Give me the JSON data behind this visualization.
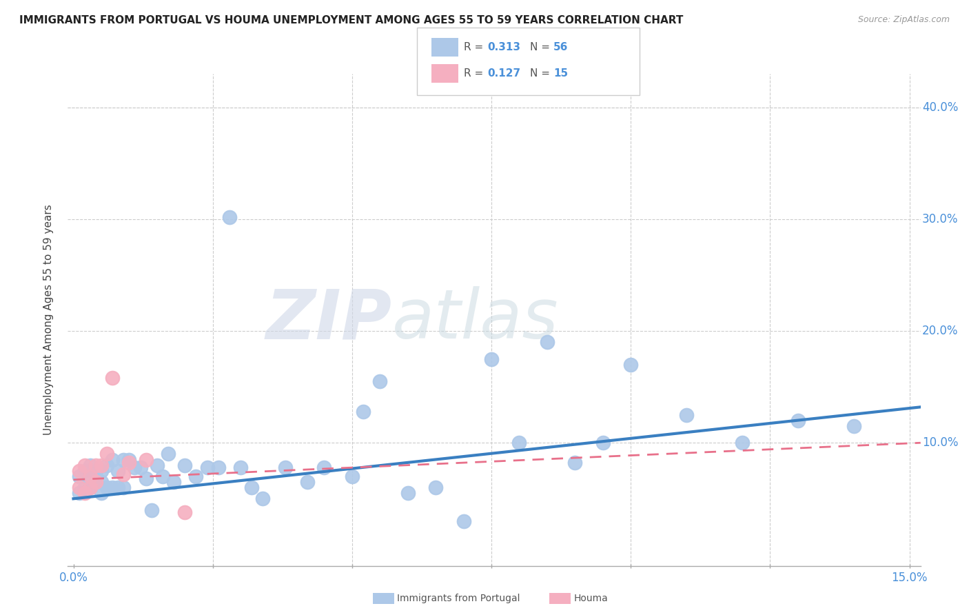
{
  "title": "IMMIGRANTS FROM PORTUGAL VS HOUMA UNEMPLOYMENT AMONG AGES 55 TO 59 YEARS CORRELATION CHART",
  "source": "Source: ZipAtlas.com",
  "ylabel": "Unemployment Among Ages 55 to 59 years",
  "xlim": [
    -0.001,
    0.152
  ],
  "ylim": [
    -0.01,
    0.43
  ],
  "yticks": [
    0.0,
    0.1,
    0.2,
    0.3,
    0.4
  ],
  "xticks": [
    0.0,
    0.025,
    0.05,
    0.075,
    0.1,
    0.125,
    0.15
  ],
  "blue_R": "0.313",
  "blue_N": "56",
  "pink_R": "0.127",
  "pink_N": "15",
  "blue_scatter_color": "#adc8e8",
  "pink_scatter_color": "#f5afc0",
  "blue_line_color": "#3a7fc1",
  "pink_line_color": "#e8708a",
  "watermark_zip": "ZIP",
  "watermark_atlas": "atlas",
  "blue_x": [
    0.001,
    0.001,
    0.002,
    0.002,
    0.003,
    0.003,
    0.003,
    0.004,
    0.004,
    0.005,
    0.005,
    0.005,
    0.006,
    0.006,
    0.007,
    0.007,
    0.008,
    0.008,
    0.009,
    0.009,
    0.01,
    0.011,
    0.012,
    0.013,
    0.014,
    0.015,
    0.016,
    0.017,
    0.018,
    0.02,
    0.022,
    0.024,
    0.026,
    0.028,
    0.03,
    0.032,
    0.034,
    0.038,
    0.042,
    0.045,
    0.05,
    0.052,
    0.055,
    0.06,
    0.065,
    0.07,
    0.075,
    0.08,
    0.085,
    0.09,
    0.095,
    0.1,
    0.11,
    0.12,
    0.13,
    0.14
  ],
  "blue_y": [
    0.055,
    0.07,
    0.06,
    0.075,
    0.06,
    0.07,
    0.08,
    0.065,
    0.075,
    0.065,
    0.075,
    0.055,
    0.06,
    0.08,
    0.06,
    0.085,
    0.06,
    0.075,
    0.06,
    0.085,
    0.085,
    0.078,
    0.078,
    0.068,
    0.04,
    0.08,
    0.07,
    0.09,
    0.065,
    0.08,
    0.07,
    0.078,
    0.078,
    0.302,
    0.078,
    0.06,
    0.05,
    0.078,
    0.065,
    0.078,
    0.07,
    0.128,
    0.155,
    0.055,
    0.06,
    0.03,
    0.175,
    0.1,
    0.19,
    0.082,
    0.1,
    0.17,
    0.125,
    0.1,
    0.12,
    0.115
  ],
  "pink_x": [
    0.001,
    0.001,
    0.002,
    0.002,
    0.003,
    0.003,
    0.004,
    0.004,
    0.005,
    0.006,
    0.007,
    0.009,
    0.01,
    0.013,
    0.02
  ],
  "pink_y": [
    0.06,
    0.075,
    0.055,
    0.08,
    0.06,
    0.07,
    0.065,
    0.08,
    0.08,
    0.09,
    0.158,
    0.072,
    0.082,
    0.085,
    0.038
  ],
  "blue_trend_x0": 0.0,
  "blue_trend_x1": 0.152,
  "blue_trend_y0": 0.05,
  "blue_trend_y1": 0.132,
  "pink_trend_x0": 0.0,
  "pink_trend_x1": 0.152,
  "pink_trend_y0": 0.067,
  "pink_trend_y1": 0.1
}
